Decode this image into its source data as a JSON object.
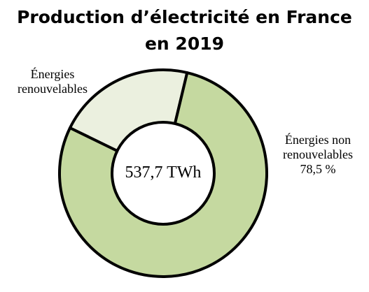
{
  "chart_data": {
    "type": "pie",
    "title_line1": "Production d’électricité en France",
    "title_line2": "en 2019",
    "center_label": "537,7 TWh",
    "slices": [
      {
        "label_line1": "Énergies",
        "label_line2": "renouvelables",
        "value": 21.5,
        "value_label": "",
        "color": "#ebf0df"
      },
      {
        "label_line1": "Énergies non",
        "label_line2": "renouvelables",
        "value": 78.5,
        "value_label": "78,5 %",
        "color": "#c5d9a0"
      }
    ]
  }
}
